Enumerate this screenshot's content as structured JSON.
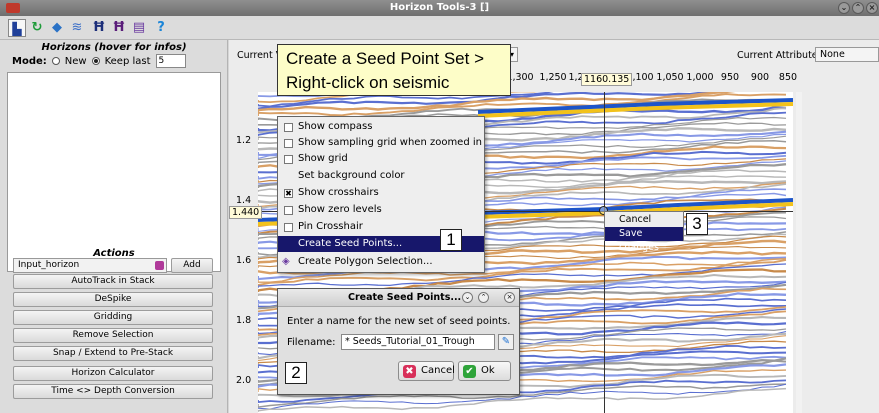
{
  "window": {
    "title": "Horizon Tools-3 []"
  },
  "toolbar": {
    "icons": [
      "select-tool-icon",
      "track-icon",
      "horizon-icon",
      "stripes-icon",
      "seed-h-icon",
      "seed-h2-icon",
      "layers-icon",
      "help-icon"
    ]
  },
  "horizons_panel": {
    "title": "Horizons (hover for infos)",
    "mode_label": "Mode:",
    "mode_new": "New",
    "mode_keep_last": "Keep last",
    "keep_last_value": "5"
  },
  "actions": {
    "title": "Actions",
    "horizon_select": "Input_horizon",
    "add_label": "Add",
    "buttons": [
      "AutoTrack in Stack",
      "DeSpike",
      "Gridding",
      "Remove Selection",
      "Snap / Extend to Pre-Stack",
      "Horizon Calculator",
      "Time <> Depth Conversion"
    ]
  },
  "viewer": {
    "current_v_label": "Current V",
    "current_attribute_label": "Current Attribute:",
    "current_attribute_value": "None",
    "x_ticks": [
      "1,300",
      "1,250",
      "1,2",
      "1,100",
      "1,050",
      "1,000",
      "950",
      "900",
      "850"
    ],
    "y_ticks": [
      "1.2",
      "1.4",
      "1.6",
      "1.8",
      "2.0"
    ],
    "crosshair_x": "1160.135",
    "crosshair_y": "1.440"
  },
  "callout": {
    "line1": "Create a Seed Point Set >",
    "line2": "Right-click on seismic"
  },
  "context_menu": {
    "items": [
      {
        "label": "Show compass",
        "checked": false
      },
      {
        "label": "Show sampling grid when zoomed in",
        "checked": false
      },
      {
        "label": "Show grid",
        "checked": false
      },
      {
        "label": "Set background color",
        "checked": null
      },
      {
        "label": "Show crosshairs",
        "checked": true
      },
      {
        "label": "Show zero levels",
        "checked": false
      },
      {
        "label": "Pin Crosshair",
        "checked": false
      },
      {
        "label": "Create Seed Points...",
        "checked": null
      },
      {
        "label": "Create Polygon Selection...",
        "checked": null
      }
    ]
  },
  "small_menu": {
    "cancel": "Cancel",
    "save": "Save changes"
  },
  "dialog": {
    "title": "Create Seed Points...",
    "message": "Enter a name for the new set of seed points.",
    "filename_label": "Filename:",
    "filename_value": "* Seeds_Tutorial_01_Trough",
    "cancel_label": "Cancel",
    "ok_label": "Ok"
  },
  "steps": [
    "1",
    "2",
    "3"
  ],
  "colors": {
    "menu_highlight": "#17176b",
    "callout_bg": "#fdfdc8"
  }
}
